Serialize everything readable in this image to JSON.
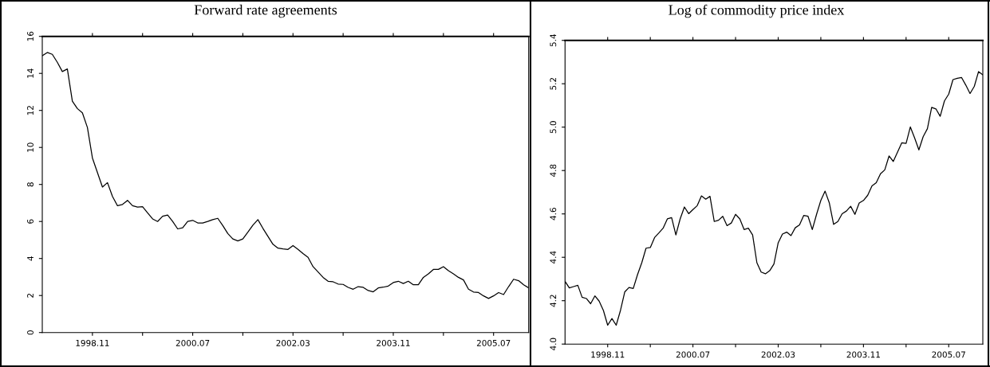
{
  "chart_data": [
    {
      "type": "line",
      "title": "Forward rate agreements",
      "x": [
        "1998-01",
        "1998-02",
        "1998-03",
        "1998-04",
        "1998-05",
        "1998-06",
        "1998-07",
        "1998-08",
        "1998-09",
        "1998-10",
        "1998-11",
        "1998-12",
        "1999-01",
        "1999-02",
        "1999-03",
        "1999-04",
        "1999-05",
        "1999-06",
        "1999-07",
        "1999-08",
        "1999-09",
        "1999-10",
        "1999-11",
        "1999-12",
        "2000-01",
        "2000-02",
        "2000-03",
        "2000-04",
        "2000-05",
        "2000-06",
        "2000-07",
        "2000-08",
        "2000-09",
        "2000-10",
        "2000-11",
        "2000-12",
        "2001-01",
        "2001-02",
        "2001-03",
        "2001-04",
        "2001-05",
        "2001-06",
        "2001-07",
        "2001-08",
        "2001-09",
        "2001-10",
        "2001-11",
        "2001-12",
        "2002-01",
        "2002-02",
        "2002-03",
        "2002-04",
        "2002-05",
        "2002-06",
        "2002-07",
        "2002-08",
        "2002-09",
        "2002-10",
        "2002-11",
        "2002-12",
        "2003-01",
        "2003-02",
        "2003-03",
        "2003-04",
        "2003-05",
        "2003-06",
        "2003-07",
        "2003-08",
        "2003-09",
        "2003-10",
        "2003-11",
        "2003-12",
        "2004-01",
        "2004-02",
        "2004-03",
        "2004-04",
        "2004-05",
        "2004-06",
        "2004-07",
        "2004-08",
        "2004-09",
        "2004-10",
        "2004-11",
        "2004-12",
        "2005-01",
        "2005-02",
        "2005-03",
        "2005-04",
        "2005-05",
        "2005-06",
        "2005-07",
        "2005-08",
        "2005-09",
        "2005-10",
        "2005-11",
        "2005-12",
        "2006-01",
        "2006-02"
      ],
      "xlim": [
        "1998-01",
        "2006-02"
      ],
      "xticks": [
        {
          "value": "1998-11",
          "label": "1998.11"
        },
        {
          "value": "1999-09",
          "label": null
        },
        {
          "value": "2000-07",
          "label": "2000.07"
        },
        {
          "value": "2001-05",
          "label": null
        },
        {
          "value": "2002-03",
          "label": "2002.03"
        },
        {
          "value": "2003-01",
          "label": null
        },
        {
          "value": "2003-11",
          "label": "2003.11"
        },
        {
          "value": "2004-09",
          "label": null
        },
        {
          "value": "2005-07",
          "label": "2005.07"
        }
      ],
      "ylim": [
        0,
        16
      ],
      "yticks": [
        0,
        2,
        4,
        6,
        8,
        10,
        12,
        14,
        16
      ],
      "grid": false,
      "legend": false,
      "series": [
        {
          "color": "#000000",
          "values": [
            14.95,
            15.13,
            15.03,
            14.6,
            14.1,
            14.24,
            12.5,
            12.1,
            11.87,
            11.08,
            9.43,
            8.64,
            7.86,
            8.1,
            7.35,
            6.85,
            6.92,
            7.14,
            6.85,
            6.78,
            6.8,
            6.47,
            6.14,
            6.0,
            6.28,
            6.35,
            6.0,
            5.6,
            5.66,
            6.0,
            6.06,
            5.92,
            5.92,
            6.0,
            6.1,
            6.17,
            5.78,
            5.35,
            5.06,
            4.95,
            5.06,
            5.42,
            5.8,
            6.1,
            5.63,
            5.2,
            4.77,
            4.56,
            4.52,
            4.49,
            4.7,
            4.49,
            4.27,
            4.06,
            3.56,
            3.27,
            2.98,
            2.77,
            2.74,
            2.62,
            2.6,
            2.44,
            2.34,
            2.48,
            2.44,
            2.27,
            2.2,
            2.41,
            2.45,
            2.51,
            2.7,
            2.77,
            2.65,
            2.77,
            2.58,
            2.58,
            2.98,
            3.17,
            3.41,
            3.41,
            3.56,
            3.34,
            3.17,
            2.98,
            2.84,
            2.34,
            2.19,
            2.16,
            1.98,
            1.84,
            1.98,
            2.16,
            2.05,
            2.48,
            2.88,
            2.8,
            2.58,
            2.41
          ]
        }
      ]
    },
    {
      "type": "line",
      "title": "Log of commodity price index",
      "x": [
        "1998-01",
        "1998-02",
        "1998-03",
        "1998-04",
        "1998-05",
        "1998-06",
        "1998-07",
        "1998-08",
        "1998-09",
        "1998-10",
        "1998-11",
        "1998-12",
        "1999-01",
        "1999-02",
        "1999-03",
        "1999-04",
        "1999-05",
        "1999-06",
        "1999-07",
        "1999-08",
        "1999-09",
        "1999-10",
        "1999-11",
        "1999-12",
        "2000-01",
        "2000-02",
        "2000-03",
        "2000-04",
        "2000-05",
        "2000-06",
        "2000-07",
        "2000-08",
        "2000-09",
        "2000-10",
        "2000-11",
        "2000-12",
        "2001-01",
        "2001-02",
        "2001-03",
        "2001-04",
        "2001-05",
        "2001-06",
        "2001-07",
        "2001-08",
        "2001-09",
        "2001-10",
        "2001-11",
        "2001-12",
        "2002-01",
        "2002-02",
        "2002-03",
        "2002-04",
        "2002-05",
        "2002-06",
        "2002-07",
        "2002-08",
        "2002-09",
        "2002-10",
        "2002-11",
        "2002-12",
        "2003-01",
        "2003-02",
        "2003-03",
        "2003-04",
        "2003-05",
        "2003-06",
        "2003-07",
        "2003-08",
        "2003-09",
        "2003-10",
        "2003-11",
        "2003-12",
        "2004-01",
        "2004-02",
        "2004-03",
        "2004-04",
        "2004-05",
        "2004-06",
        "2004-07",
        "2004-08",
        "2004-09",
        "2004-10",
        "2004-11",
        "2004-12",
        "2005-01",
        "2005-02",
        "2005-03",
        "2005-04",
        "2005-05",
        "2005-06",
        "2005-07",
        "2005-08",
        "2005-09",
        "2005-10",
        "2005-11",
        "2005-12",
        "2006-01",
        "2006-02",
        "2006-03"
      ],
      "xlim": [
        "1998-01",
        "2006-03"
      ],
      "xticks": [
        {
          "value": "1998-11",
          "label": "1998.11"
        },
        {
          "value": "1999-09",
          "label": null
        },
        {
          "value": "2000-07",
          "label": "2000.07"
        },
        {
          "value": "2001-05",
          "label": null
        },
        {
          "value": "2002-03",
          "label": "2002.03"
        },
        {
          "value": "2003-01",
          "label": null
        },
        {
          "value": "2003-11",
          "label": "2003.11"
        },
        {
          "value": "2004-09",
          "label": null
        },
        {
          "value": "2005-07",
          "label": "2005.07"
        }
      ],
      "ylim": [
        4.0,
        5.4
      ],
      "yticks": [
        {
          "value": 4.0,
          "label": "4.0"
        },
        4.2,
        4.4,
        4.6,
        4.8,
        {
          "value": 5.0,
          "label": "5.0"
        },
        5.2,
        5.4
      ],
      "grid": false,
      "legend": false,
      "series": [
        {
          "color": "#000000",
          "values": [
            4.289,
            4.259,
            4.265,
            4.271,
            4.216,
            4.21,
            4.186,
            4.222,
            4.198,
            4.155,
            4.087,
            4.118,
            4.087,
            4.155,
            4.24,
            4.261,
            4.256,
            4.32,
            4.375,
            4.442,
            4.445,
            4.491,
            4.512,
            4.534,
            4.577,
            4.583,
            4.503,
            4.577,
            4.632,
            4.601,
            4.62,
            4.638,
            4.683,
            4.668,
            4.681,
            4.565,
            4.571,
            4.589,
            4.546,
            4.558,
            4.598,
            4.577,
            4.528,
            4.534,
            4.503,
            4.375,
            4.332,
            4.324,
            4.338,
            4.369,
            4.467,
            4.507,
            4.516,
            4.5,
            4.536,
            4.549,
            4.593,
            4.589,
            4.528,
            4.598,
            4.662,
            4.705,
            4.65,
            4.552,
            4.565,
            4.601,
            4.613,
            4.635,
            4.598,
            4.65,
            4.662,
            4.686,
            4.729,
            4.744,
            4.785,
            4.803,
            4.867,
            4.842,
            4.885,
            4.928,
            4.925,
            5.001,
            4.95,
            4.895,
            4.956,
            4.993,
            5.091,
            5.084,
            5.05,
            5.121,
            5.152,
            5.219,
            5.225,
            5.229,
            5.194,
            5.155,
            5.188,
            5.256,
            5.241
          ]
        }
      ]
    }
  ]
}
